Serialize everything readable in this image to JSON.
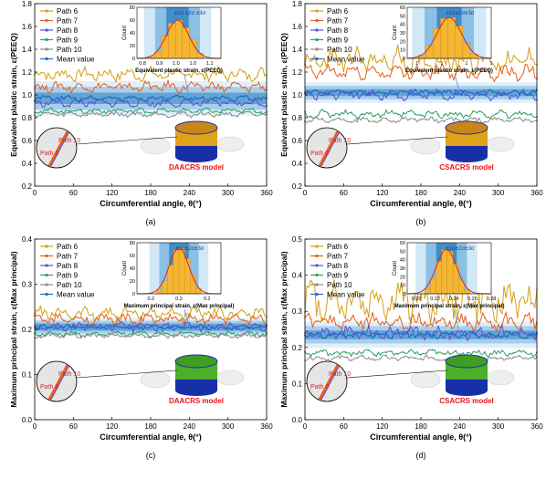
{
  "figure": {
    "panels": [
      {
        "id": "a",
        "caption": "(a)",
        "ylabel": "Equivalent plastic strain, ε(PEEQ)",
        "xlabel": "Circumferential angle, θ(°)",
        "model_label": "DAACRS model",
        "path_tag_10": "Path 10",
        "path_tag_6": "Path 6",
        "inset_xlabel": "Equivalent plastic strain, ε(PEEQ)",
        "inset_ylabel": "Count",
        "sigma_label": "±1σ ±2σ ±3σ"
      },
      {
        "id": "b",
        "caption": "(b)",
        "ylabel": "Equivalent plastic strain, ε(PEEQ)",
        "xlabel": "Circumferential angle, θ(°)",
        "model_label": "CSACRS model",
        "path_tag_10": "Path 10",
        "path_tag_6": "Path 6",
        "inset_xlabel": "Equivalent plastic strain, ε(PEEQ)",
        "inset_ylabel": "Count",
        "sigma_label": "±1σ±2σ±3σ"
      },
      {
        "id": "c",
        "caption": "(c)",
        "ylabel": "Maximum principal strain, ε(Max principal)",
        "xlabel": "Circumferential angle, θ(°)",
        "model_label": "DAACRS model",
        "path_tag_10": "Path 10",
        "path_tag_6": "Path 6",
        "inset_xlabel": "Maximum principal strain, ε(Max principal)",
        "inset_ylabel": "Count",
        "sigma_label": "±1σ±2σ±3σ"
      },
      {
        "id": "d",
        "caption": "(d)",
        "ylabel": "Maximum principal strain, ε(Max principal)",
        "xlabel": "Circumferential angle, θ(°)",
        "model_label": "CSACRS model",
        "path_tag_10": "Path 10",
        "path_tag_6": "Path 6",
        "inset_xlabel": "Maximum principal strain, ε(Max principal)",
        "inset_ylabel": "Count",
        "sigma_label": "±1σ±2σ±3σ"
      }
    ],
    "colors": {
      "path6": "#d4a017",
      "path7": "#e8601c",
      "path8": "#5a4fcf",
      "path9": "#2ca25f",
      "path10": "#8c8c8c",
      "mean": "#1f6fc5",
      "band1": "#2f7fc1",
      "band2": "#78b5e0",
      "band3": "#c6e2f5",
      "hist_bar": "#f5b731",
      "hist_fit": "#d62728",
      "model_label": "#e8141b"
    }
  },
  "chart_data": [
    {
      "type": "line",
      "panel": "a",
      "xlabel": "Circumferential angle, θ(°)",
      "ylabel": "Equivalent plastic strain, ε(PEEQ)",
      "xlim": [
        0,
        360
      ],
      "ylim": [
        0.2,
        1.8
      ],
      "xticks": [
        0,
        60,
        120,
        180,
        240,
        300,
        360
      ],
      "yticks": [
        0.2,
        0.4,
        0.6,
        0.8,
        1.0,
        1.2,
        1.4,
        1.6,
        1.8
      ],
      "series": [
        {
          "name": "Path 6",
          "color": "#d4a017",
          "base": 1.18,
          "amp": 0.05
        },
        {
          "name": "Path 7",
          "color": "#e8601c",
          "base": 1.07,
          "amp": 0.04
        },
        {
          "name": "Path 8",
          "color": "#5a4fcf",
          "base": 0.93,
          "amp": 0.03
        },
        {
          "name": "Path 9",
          "color": "#2ca25f",
          "base": 0.86,
          "amp": 0.02
        },
        {
          "name": "Path 10",
          "color": "#8c8c8c",
          "base": 0.83,
          "amp": 0.02
        },
        {
          "name": "Mean value",
          "color": "#1f6fc5",
          "base": 0.97,
          "amp": 0.02
        }
      ],
      "sigma_band_center": 0.97,
      "sigma_band_halfwidths": [
        0.05,
        0.1,
        0.15
      ],
      "inset_histogram": {
        "xlim": [
          0.82,
          1.12
        ],
        "xticks": [
          0.84,
          0.9,
          0.96,
          1.02,
          1.08
        ],
        "ylim": [
          0,
          80
        ],
        "yticks": [
          0,
          20,
          40,
          60,
          80
        ],
        "bin_centers": [
          0.87,
          0.895,
          0.92,
          0.945,
          0.97,
          0.995,
          1.02,
          1.045
        ],
        "counts": [
          3,
          10,
          35,
          55,
          60,
          48,
          30,
          8
        ],
        "fit_mean": 0.965,
        "fit_sigma": 0.04,
        "fit_peak": 60
      }
    },
    {
      "type": "line",
      "panel": "b",
      "xlabel": "Circumferential angle, θ(°)",
      "ylabel": "Equivalent plastic strain, ε(PEEQ)",
      "xlim": [
        0,
        360
      ],
      "ylim": [
        0.2,
        1.8
      ],
      "xticks": [
        0,
        60,
        120,
        180,
        240,
        300,
        360
      ],
      "yticks": [
        0.2,
        0.4,
        0.6,
        0.8,
        1.0,
        1.2,
        1.4,
        1.6,
        1.8
      ],
      "series": [
        {
          "name": "Path 6",
          "color": "#d4a017",
          "base": 1.3,
          "amp": 0.1
        },
        {
          "name": "Path 7",
          "color": "#e8601c",
          "base": 1.2,
          "amp": 0.06
        },
        {
          "name": "Path 8",
          "color": "#5a4fcf",
          "base": 1.0,
          "amp": 0.04
        },
        {
          "name": "Path 9",
          "color": "#2ca25f",
          "base": 0.83,
          "amp": 0.03
        },
        {
          "name": "Path 10",
          "color": "#8c8c8c",
          "base": 0.78,
          "amp": 0.02
        },
        {
          "name": "Mean value",
          "color": "#1f6fc5",
          "base": 1.02,
          "amp": 0.02
        }
      ],
      "sigma_band_center": 1.02,
      "sigma_band_halfwidths": [
        0.03,
        0.06,
        0.09
      ],
      "inset_histogram": {
        "xlim": [
          0.93,
          1.1
        ],
        "xticks": [
          0.95,
          1.0,
          1.05,
          1.1
        ],
        "ylim": [
          0,
          60
        ],
        "yticks": [
          0,
          10,
          20,
          30,
          40,
          50,
          60
        ],
        "bin_centers": [
          0.96,
          0.975,
          0.99,
          1.005,
          1.02,
          1.035,
          1.05,
          1.065
        ],
        "counts": [
          4,
          15,
          35,
          47,
          48,
          38,
          18,
          5
        ],
        "fit_mean": 1.015,
        "fit_sigma": 0.025,
        "fit_peak": 48
      }
    },
    {
      "type": "line",
      "panel": "c",
      "xlabel": "Circumferential angle, θ(°)",
      "ylabel": "Maximum principal strain, ε(Max principal)",
      "xlim": [
        0,
        360
      ],
      "ylim": [
        0.0,
        0.4
      ],
      "xticks": [
        0,
        60,
        120,
        180,
        240,
        300,
        360
      ],
      "yticks": [
        0.0,
        0.1,
        0.2,
        0.3,
        0.4
      ],
      "series": [
        {
          "name": "Path 6",
          "color": "#d4a017",
          "base": 0.235,
          "amp": 0.012
        },
        {
          "name": "Path 7",
          "color": "#e8601c",
          "base": 0.222,
          "amp": 0.01
        },
        {
          "name": "Path 8",
          "color": "#5a4fcf",
          "base": 0.205,
          "amp": 0.008
        },
        {
          "name": "Path 9",
          "color": "#2ca25f",
          "base": 0.19,
          "amp": 0.005
        },
        {
          "name": "Path 10",
          "color": "#8c8c8c",
          "base": 0.186,
          "amp": 0.005
        },
        {
          "name": "Mean value",
          "color": "#1f6fc5",
          "base": 0.205,
          "amp": 0.005
        }
      ],
      "sigma_band_center": 0.205,
      "sigma_band_halfwidths": [
        0.008,
        0.014,
        0.02
      ],
      "inset_histogram": {
        "xlim": [
          0.17,
          0.23
        ],
        "xticks": [
          0.18,
          0.2,
          0.22
        ],
        "ylim": [
          0,
          80
        ],
        "yticks": [
          0,
          20,
          40,
          60,
          80
        ],
        "bin_centers": [
          0.186,
          0.19,
          0.194,
          0.198,
          0.202,
          0.206,
          0.21,
          0.214
        ],
        "counts": [
          6,
          20,
          45,
          68,
          72,
          55,
          30,
          8
        ],
        "fit_mean": 0.2,
        "fit_sigma": 0.007,
        "fit_peak": 72
      }
    },
    {
      "type": "line",
      "panel": "d",
      "xlabel": "Circumferential angle, θ(°)",
      "ylabel": "Maximum principal strain, ε(Max principal)",
      "xlim": [
        0,
        360
      ],
      "ylim": [
        0.0,
        0.5
      ],
      "xticks": [
        0,
        60,
        120,
        180,
        240,
        300,
        360
      ],
      "yticks": [
        0.0,
        0.1,
        0.2,
        0.3,
        0.4,
        0.5
      ],
      "series": [
        {
          "name": "Path 6",
          "color": "#d4a017",
          "base": 0.33,
          "amp": 0.05
        },
        {
          "name": "Path 7",
          "color": "#e8601c",
          "base": 0.27,
          "amp": 0.02
        },
        {
          "name": "Path 8",
          "color": "#5a4fcf",
          "base": 0.24,
          "amp": 0.015
        },
        {
          "name": "Path 9",
          "color": "#2ca25f",
          "base": 0.185,
          "amp": 0.008
        },
        {
          "name": "Path 10",
          "color": "#8c8c8c",
          "base": 0.17,
          "amp": 0.006
        },
        {
          "name": "Mean value",
          "color": "#1f6fc5",
          "base": 0.235,
          "amp": 0.008
        }
      ],
      "sigma_band_center": 0.235,
      "sigma_band_halfwidths": [
        0.012,
        0.024,
        0.036
      ],
      "inset_histogram": {
        "xlim": [
          0.19,
          0.28
        ],
        "xticks": [
          0.2,
          0.22,
          0.24,
          0.26,
          0.28
        ],
        "ylim": [
          0,
          60
        ],
        "yticks": [
          0,
          10,
          20,
          30,
          40,
          50,
          60
        ],
        "bin_centers": [
          0.212,
          0.218,
          0.224,
          0.23,
          0.236,
          0.242,
          0.248,
          0.254
        ],
        "counts": [
          6,
          18,
          38,
          52,
          50,
          35,
          17,
          5
        ],
        "fit_mean": 0.232,
        "fit_sigma": 0.011,
        "fit_peak": 52
      }
    }
  ]
}
